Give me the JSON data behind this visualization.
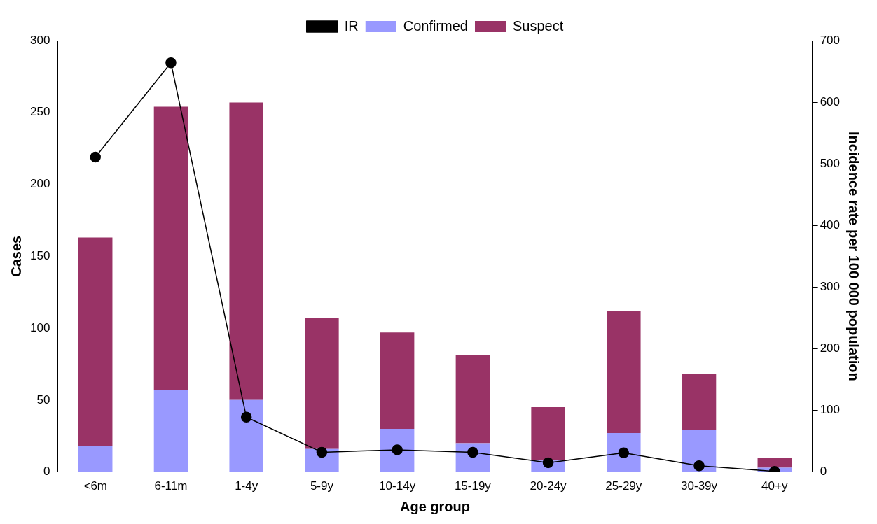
{
  "chart_data": {
    "type": "bar",
    "xlabel": "Age group",
    "ylabel": "Cases",
    "y2label": "Incidence rate per 100 000 population",
    "categories": [
      "<6m",
      "6-11m",
      "1-4y",
      "5-9y",
      "10-14y",
      "15-19y",
      "20-24y",
      "25-29y",
      "30-39y",
      "40+y"
    ],
    "stacked": true,
    "series": [
      {
        "name": "Confirmed",
        "color": "#9999ff",
        "values": [
          18,
          57,
          50,
          16,
          30,
          20,
          8,
          27,
          29,
          3
        ]
      },
      {
        "name": "Suspect",
        "color": "#993366",
        "values": [
          145,
          197,
          207,
          91,
          67,
          61,
          37,
          85,
          39,
          7
        ]
      },
      {
        "name": "IR",
        "type": "line",
        "axis": "y2",
        "color": "#000000",
        "marker": "circle",
        "values": [
          511,
          664,
          89,
          32,
          36,
          32,
          15,
          31,
          10,
          1
        ]
      }
    ],
    "ylim": [
      0,
      300
    ],
    "yticks": [
      0,
      50,
      100,
      150,
      200,
      250,
      300
    ],
    "y2lim": [
      0,
      700
    ],
    "y2ticks": [
      0,
      100,
      200,
      300,
      400,
      500,
      600,
      700
    ],
    "grid": false,
    "legend": "top right"
  }
}
